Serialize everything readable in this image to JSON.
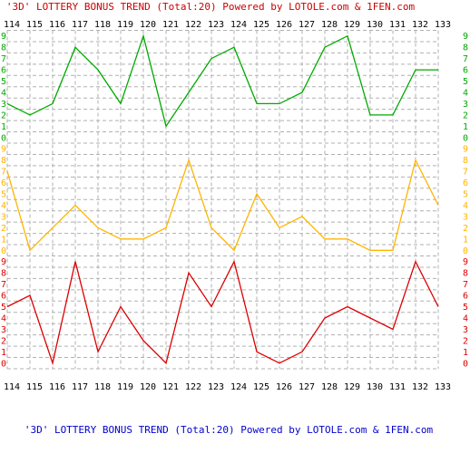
{
  "header_text": "'3D' LOTTERY BONUS TREND (Total:20)  Powered by LOTOLE.com & 1FEN.com",
  "footer_text": "'3D' LOTTERY BONUS TREND (Total:20)  Powered by LOTOLE.com & 1FEN.com",
  "colors": {
    "title": "#cc0000",
    "footer": "#0000cc",
    "grid": "#b0b0b0",
    "axis_text": "#000000",
    "green": "#00aa00",
    "yellow": "#ffb400",
    "red": "#dd0000"
  },
  "chart_data": {
    "type": "line",
    "title": "'3D' LOTTERY BONUS TREND (Total:20)  Powered by LOTOLE.com & 1FEN.com",
    "x": [
      "114",
      "115",
      "116",
      "117",
      "118",
      "119",
      "120",
      "121",
      "122",
      "123",
      "124",
      "125",
      "126",
      "127",
      "128",
      "129",
      "130",
      "131",
      "132",
      "133"
    ],
    "band_ticks": [
      "0",
      "1",
      "2",
      "3",
      "4",
      "5",
      "6",
      "7",
      "8",
      "9"
    ],
    "ylim": [
      0,
      9
    ],
    "grid": true,
    "series": [
      {
        "color": "#00aa00",
        "band": "top",
        "values": [
          3,
          2,
          3,
          8,
          6,
          3,
          9,
          1,
          4,
          7,
          8,
          3,
          3,
          4,
          8,
          9,
          2,
          2,
          6,
          6
        ]
      },
      {
        "color": "#ffb400",
        "band": "middle",
        "values": [
          7,
          0,
          2,
          4,
          2,
          1,
          1,
          2,
          8,
          2,
          0,
          5,
          2,
          3,
          1,
          1,
          0,
          0,
          8,
          4
        ]
      },
      {
        "color": "#dd0000",
        "band": "bottom",
        "values": [
          5,
          6,
          0,
          9,
          1,
          5,
          2,
          0,
          8,
          5,
          9,
          1,
          0,
          1,
          4,
          5,
          4,
          3,
          9,
          5
        ]
      }
    ]
  }
}
